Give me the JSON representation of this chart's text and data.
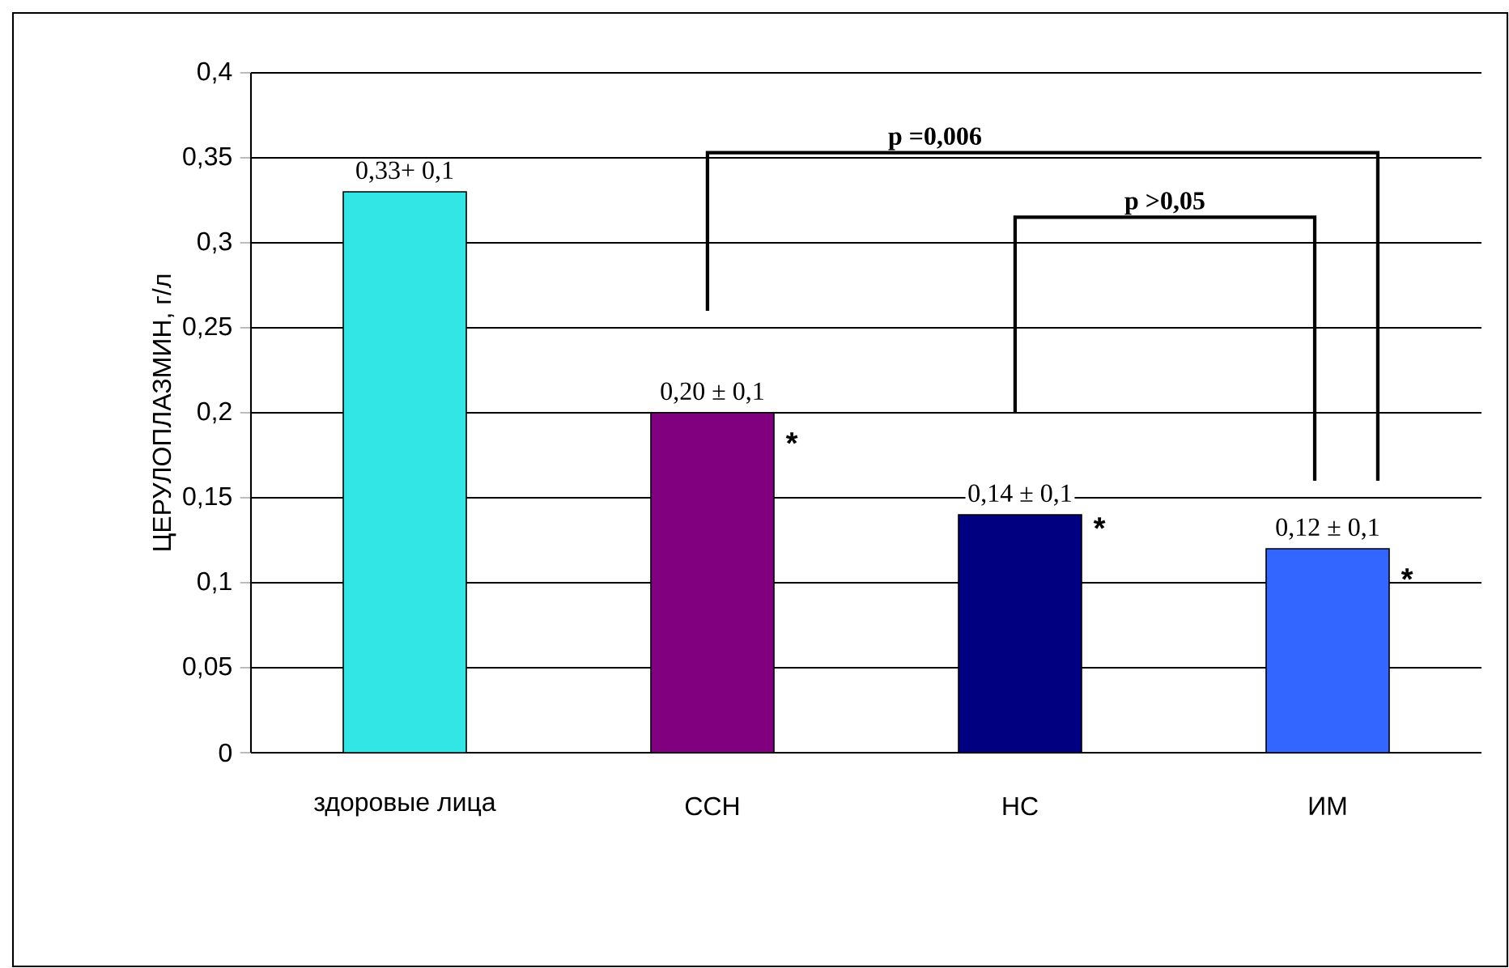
{
  "chart_data": {
    "type": "bar",
    "ylabel": "ЦЕРУЛОПЛАЗМИН, г/л",
    "categories": [
      "здоровые лица",
      "ССН",
      "НС",
      "ИМ"
    ],
    "values": [
      0.33,
      0.2,
      0.14,
      0.12
    ],
    "colors": [
      "#33e6e6",
      "#800080",
      "#000080",
      "#3366ff"
    ],
    "value_labels": [
      "0,33+ 0,1",
      "0,20 ± 0,1",
      "0,14 ± 0,1",
      "0,12 ± 0,1"
    ],
    "ylim": [
      0,
      0.4
    ],
    "yticks": [
      0,
      {
        "value": 0.05,
        "label": "0,05"
      },
      {
        "value": 0.1,
        "label": "0,1"
      },
      {
        "value": 0.15,
        "label": "0,15"
      },
      {
        "value": 0.2,
        "label": "0,2"
      },
      {
        "value": 0.25,
        "label": "0,25"
      },
      {
        "value": 0.3,
        "label": "0,3"
      },
      {
        "value": 0.35,
        "label": "0,35"
      },
      {
        "value": 0.4,
        "label": "0,4"
      }
    ],
    "grid": "y",
    "annotations": [
      "p =0,006",
      "p >0,05",
      "*",
      "*",
      "*"
    ]
  }
}
